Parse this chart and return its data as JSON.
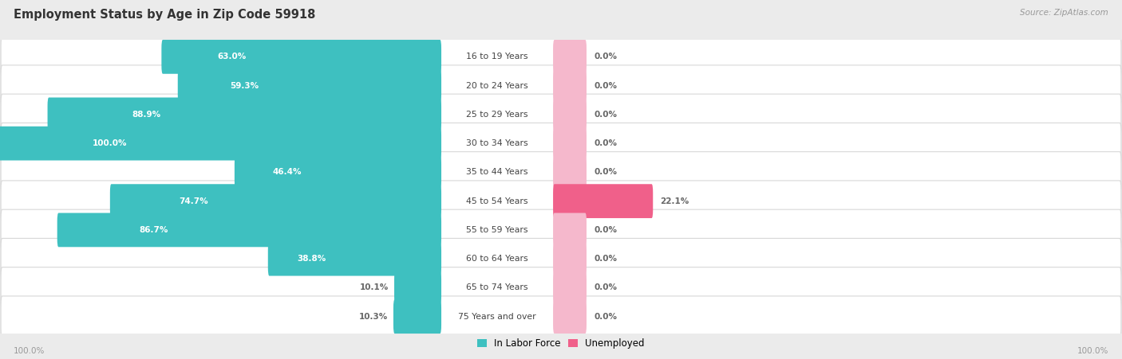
{
  "title": "Employment Status by Age in Zip Code 59918",
  "source": "Source: ZipAtlas.com",
  "categories": [
    "16 to 19 Years",
    "20 to 24 Years",
    "25 to 29 Years",
    "30 to 34 Years",
    "35 to 44 Years",
    "45 to 54 Years",
    "55 to 59 Years",
    "60 to 64 Years",
    "65 to 74 Years",
    "75 Years and over"
  ],
  "labor_force": [
    63.0,
    59.3,
    88.9,
    100.0,
    46.4,
    74.7,
    86.7,
    38.8,
    10.1,
    10.3
  ],
  "unemployed": [
    0.0,
    0.0,
    0.0,
    0.0,
    0.0,
    22.1,
    0.0,
    0.0,
    0.0,
    0.0
  ],
  "labor_force_color": "#3ec0c0",
  "unemployed_nonzero_color": "#f0608a",
  "unemployed_zero_color": "#f5b8cc",
  "background_color": "#ebebeb",
  "row_bg_color": "#ffffff",
  "row_border_color": "#d8d8d8",
  "label_inside_color": "#ffffff",
  "label_outside_color": "#666666",
  "center_label_color": "#444444",
  "axis_label_color": "#999999",
  "title_color": "#333333",
  "source_color": "#999999",
  "max_val": 100.0,
  "zero_bar_width": 7.0,
  "legend_labor": "In Labor Force",
  "legend_unemployed": "Unemployed",
  "figsize": [
    14.06,
    4.51
  ],
  "dpi": 100
}
